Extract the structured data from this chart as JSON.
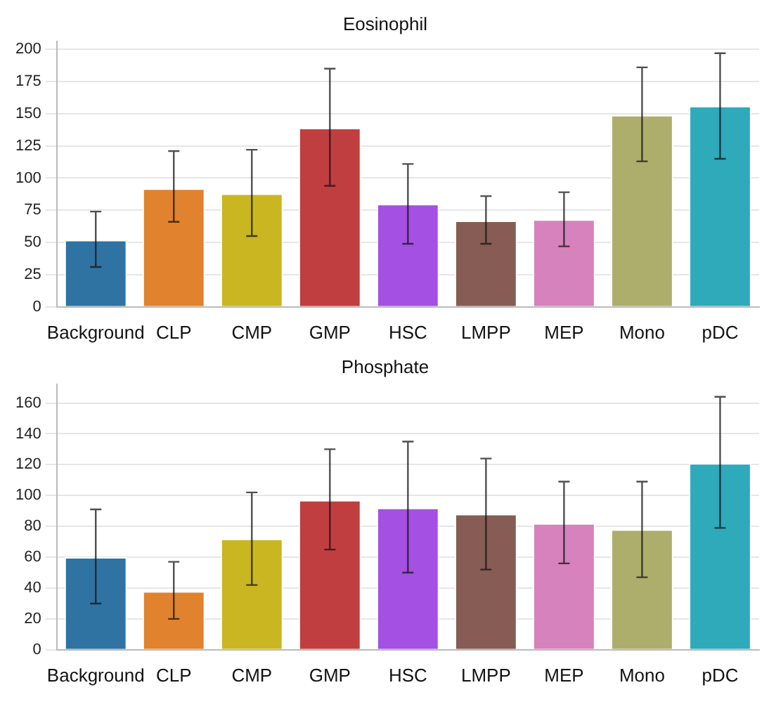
{
  "chart_data": [
    {
      "type": "bar",
      "title": "Eosinophil",
      "categories": [
        "Background",
        "CLP",
        "CMP",
        "GMP",
        "HSC",
        "LMPP",
        "MEP",
        "Mono",
        "pDC"
      ],
      "values": [
        52,
        92,
        88,
        139,
        80,
        67,
        68,
        149,
        156
      ],
      "colors": [
        "#2f73a3",
        "#e0822e",
        "#c9b620",
        "#c13e40",
        "#a450e2",
        "#865c55",
        "#d582bd",
        "#adae6c",
        "#2eaaba"
      ],
      "errors": [
        [
          31,
          74
        ],
        [
          66,
          121
        ],
        [
          55,
          122
        ],
        [
          94,
          185
        ],
        [
          49,
          111
        ],
        [
          49,
          86
        ],
        [
          47,
          89
        ],
        [
          113,
          186
        ],
        [
          115,
          197
        ]
      ],
      "ylim": [
        0,
        206
      ],
      "yticks": [
        0,
        25,
        50,
        75,
        100,
        125,
        150,
        175,
        200
      ],
      "grid": "y",
      "legend": false
    },
    {
      "type": "bar",
      "title": "Phosphate",
      "categories": [
        "Background",
        "CLP",
        "CMP",
        "GMP",
        "HSC",
        "LMPP",
        "MEP",
        "Mono",
        "pDC"
      ],
      "values": [
        60,
        38,
        72,
        97,
        92,
        88,
        82,
        78,
        121
      ],
      "colors": [
        "#2f73a3",
        "#e0822e",
        "#c9b620",
        "#c13e40",
        "#a450e2",
        "#865c55",
        "#d582bd",
        "#adae6c",
        "#2eaaba"
      ],
      "errors": [
        [
          30,
          91
        ],
        [
          20,
          57
        ],
        [
          42,
          102
        ],
        [
          65,
          130
        ],
        [
          50,
          135
        ],
        [
          52,
          124
        ],
        [
          56,
          109
        ],
        [
          47,
          109
        ],
        [
          79,
          164
        ]
      ],
      "ylim": [
        0,
        172
      ],
      "yticks": [
        0,
        20,
        40,
        60,
        80,
        100,
        120,
        140,
        160
      ],
      "grid": "y",
      "legend": false
    }
  ]
}
